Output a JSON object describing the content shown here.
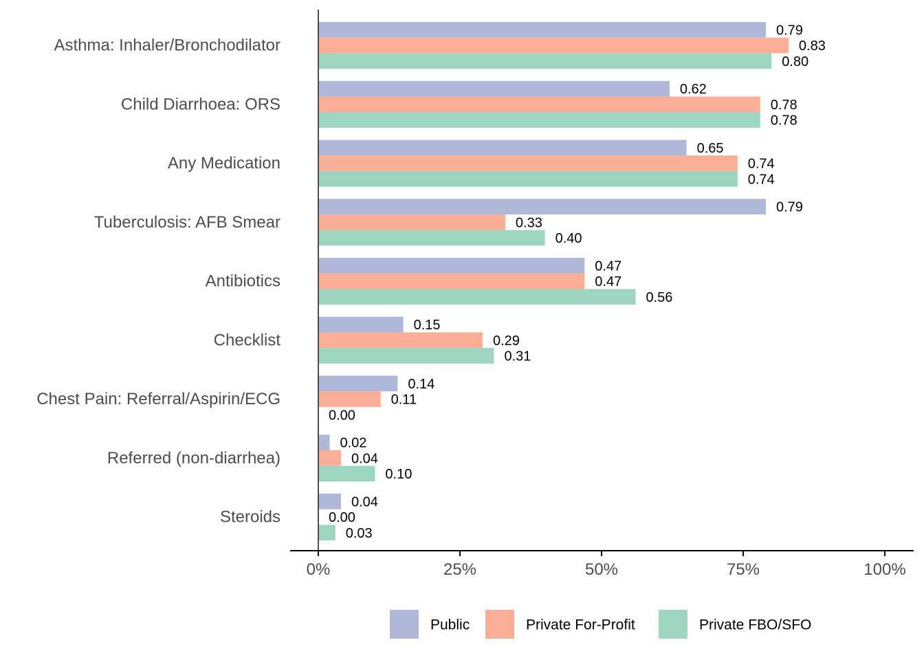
{
  "chart_data": {
    "type": "bar",
    "orientation": "horizontal",
    "categories": [
      "Asthma: Inhaler/Bronchodilator",
      "Child Diarrhoea: ORS",
      "Any Medication",
      "Tuberculosis: AFB Smear",
      "Antibiotics",
      "Checklist",
      "Chest Pain: Referral/Aspirin/ECG",
      "Referred (non-diarrhea)",
      "Steroids"
    ],
    "series": [
      {
        "name": "Public",
        "color": "#b0b8d9",
        "values": [
          0.79,
          0.62,
          0.65,
          0.79,
          0.47,
          0.15,
          0.14,
          0.02,
          0.04
        ],
        "labels": [
          "0.79",
          "0.62",
          "0.65",
          "0.79",
          "0.47",
          "0.15",
          "0.14",
          "0.02",
          "0.04"
        ]
      },
      {
        "name": "Private For-Profit",
        "color": "#fbae96",
        "values": [
          0.83,
          0.78,
          0.74,
          0.33,
          0.47,
          0.29,
          0.11,
          0.04,
          0.0
        ],
        "labels": [
          "0.83",
          "0.78",
          "0.74",
          "0.33",
          "0.47",
          "0.29",
          "0.11",
          "0.04",
          "0.00"
        ]
      },
      {
        "name": "Private FBO/SFO",
        "color": "#9dd5c0",
        "values": [
          0.8,
          0.78,
          0.74,
          0.4,
          0.56,
          0.31,
          0.0,
          0.1,
          0.03
        ],
        "labels": [
          "0.80",
          "0.78",
          "0.74",
          "0.40",
          "0.56",
          "0.31",
          "0.00",
          "0.10",
          "0.03"
        ]
      }
    ],
    "xlim": [
      0,
      1
    ],
    "x_ticks": [
      0,
      0.25,
      0.5,
      0.75,
      1.0
    ],
    "x_tick_labels": [
      "0%",
      "25%",
      "50%",
      "75%",
      "100%"
    ],
    "title": "",
    "xlabel": "",
    "ylabel": "",
    "grid": false,
    "legend_position": "bottom"
  }
}
